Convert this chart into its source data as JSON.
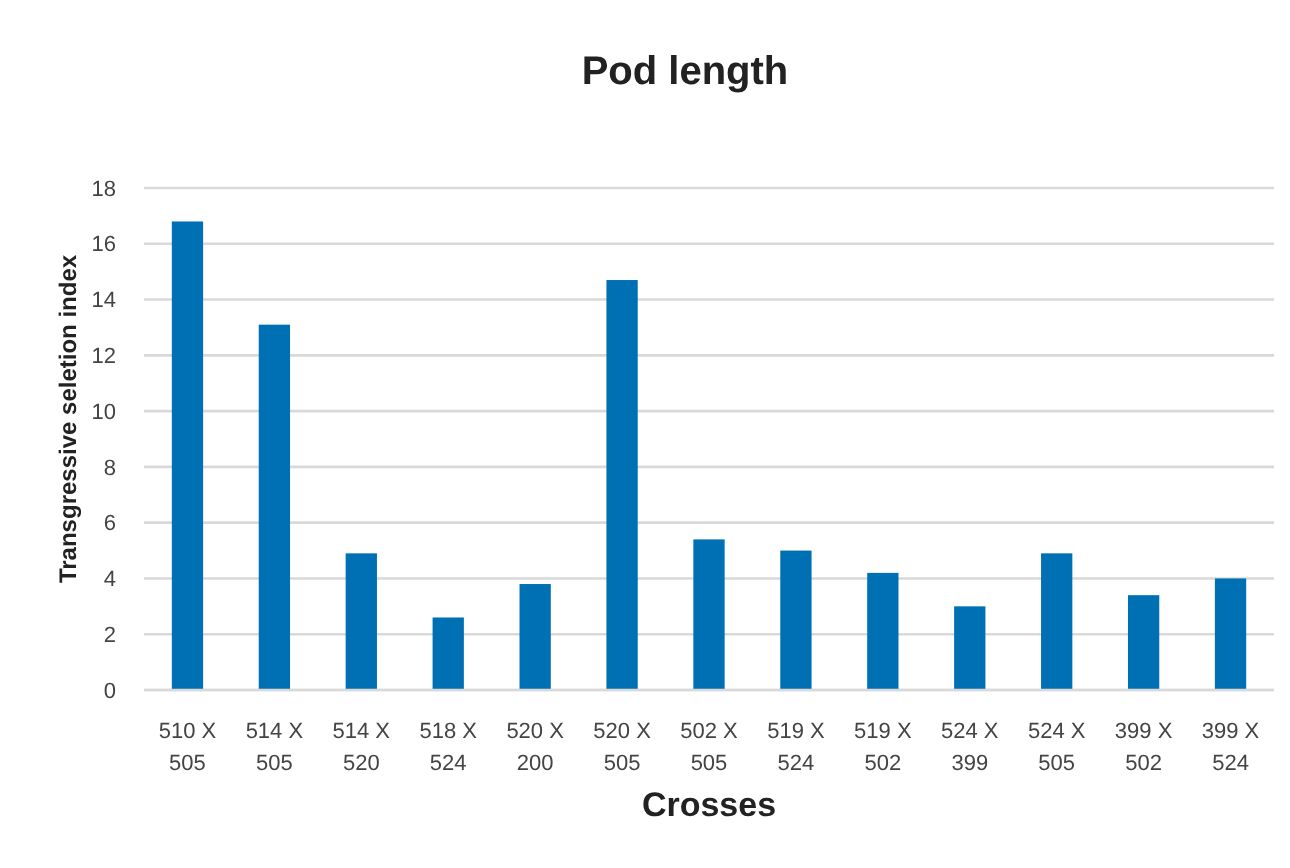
{
  "chart_data": {
    "type": "bar",
    "title": "Pod length",
    "xlabel": "Crosses",
    "ylabel": "Transgressive seletion index",
    "categories": [
      "510 X 505",
      "514 X 505",
      "514 X 520",
      "518 X 524",
      "520 X 200",
      "520 X 505",
      "502 X 505",
      "519 X 524",
      "519 X 502",
      "524 X 399",
      "524 X 505",
      "399 X 502",
      "399 X 524"
    ],
    "values": [
      16.8,
      13.1,
      4.9,
      2.6,
      3.8,
      14.7,
      5.4,
      5.0,
      4.2,
      3.0,
      4.9,
      3.4,
      4.0
    ],
    "color": "#0070b4",
    "ylim": [
      0,
      18
    ],
    "yticks": [
      0,
      2,
      4,
      6,
      8,
      10,
      12,
      14,
      16,
      18
    ],
    "grid": "y"
  }
}
